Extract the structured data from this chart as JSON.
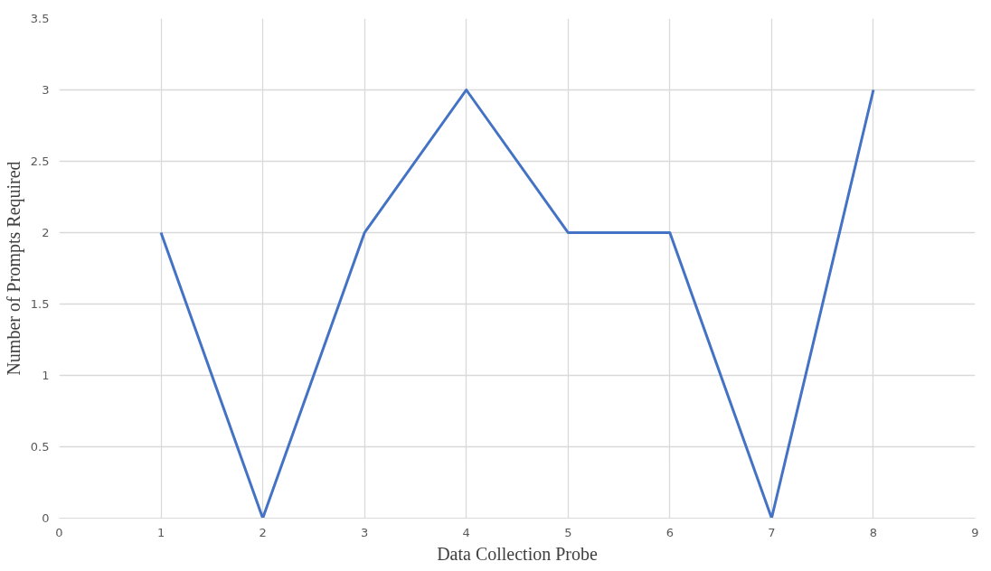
{
  "chart_data": {
    "type": "line",
    "xlabel": "Data Collection Probe",
    "ylabel": "Number of Prompts Required",
    "x": [
      1,
      2,
      3,
      4,
      5,
      6,
      7,
      8
    ],
    "series": [
      {
        "color": "#4472c4",
        "values": [
          2,
          0,
          2,
          3,
          2,
          2,
          0,
          3
        ]
      }
    ],
    "xlim": [
      0,
      9
    ],
    "xticks": [
      0,
      1,
      2,
      3,
      4,
      5,
      6,
      7,
      8,
      9
    ],
    "ylim": [
      0,
      3.5
    ],
    "yticks": [
      0,
      0.5,
      1,
      1.5,
      2,
      2.5,
      3,
      3.5
    ],
    "grid": true,
    "marker": "none",
    "line_style": "solid"
  }
}
